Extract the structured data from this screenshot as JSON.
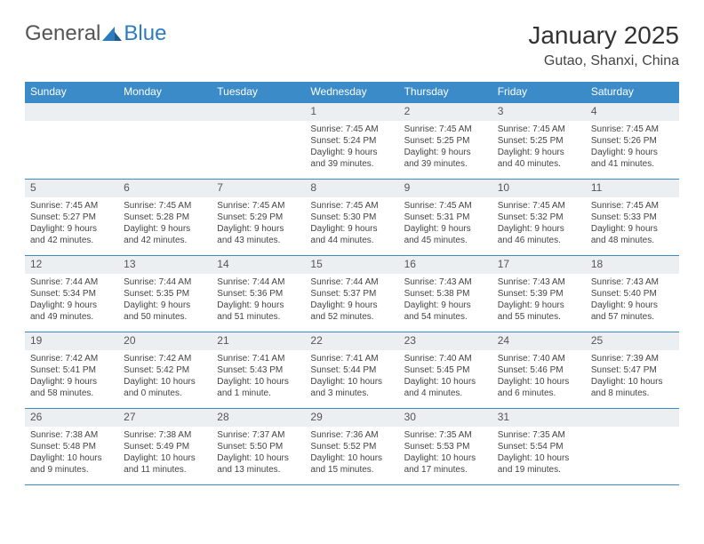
{
  "logo": {
    "text_general": "General",
    "text_blue": "Blue"
  },
  "header": {
    "month_title": "January 2025",
    "location": "Gutao, Shanxi, China"
  },
  "colors": {
    "header_bg": "#3b8bc9",
    "daynum_bg": "#eceff2",
    "border": "#3b8bc9",
    "text": "#333333",
    "logo_general": "#555555",
    "logo_blue": "#2d7cc0"
  },
  "fonts": {
    "title_size": 28,
    "location_size": 16,
    "dayheader_size": 12,
    "daynum_size": 12,
    "detail_size": 10
  },
  "day_headers": [
    "Sunday",
    "Monday",
    "Tuesday",
    "Wednesday",
    "Thursday",
    "Friday",
    "Saturday"
  ],
  "weeks": [
    [
      {
        "empty": true
      },
      {
        "empty": true
      },
      {
        "empty": true
      },
      {
        "num": "1",
        "sunrise": "Sunrise: 7:45 AM",
        "sunset": "Sunset: 5:24 PM",
        "daylight1": "Daylight: 9 hours",
        "daylight2": "and 39 minutes."
      },
      {
        "num": "2",
        "sunrise": "Sunrise: 7:45 AM",
        "sunset": "Sunset: 5:25 PM",
        "daylight1": "Daylight: 9 hours",
        "daylight2": "and 39 minutes."
      },
      {
        "num": "3",
        "sunrise": "Sunrise: 7:45 AM",
        "sunset": "Sunset: 5:25 PM",
        "daylight1": "Daylight: 9 hours",
        "daylight2": "and 40 minutes."
      },
      {
        "num": "4",
        "sunrise": "Sunrise: 7:45 AM",
        "sunset": "Sunset: 5:26 PM",
        "daylight1": "Daylight: 9 hours",
        "daylight2": "and 41 minutes."
      }
    ],
    [
      {
        "num": "5",
        "sunrise": "Sunrise: 7:45 AM",
        "sunset": "Sunset: 5:27 PM",
        "daylight1": "Daylight: 9 hours",
        "daylight2": "and 42 minutes."
      },
      {
        "num": "6",
        "sunrise": "Sunrise: 7:45 AM",
        "sunset": "Sunset: 5:28 PM",
        "daylight1": "Daylight: 9 hours",
        "daylight2": "and 42 minutes."
      },
      {
        "num": "7",
        "sunrise": "Sunrise: 7:45 AM",
        "sunset": "Sunset: 5:29 PM",
        "daylight1": "Daylight: 9 hours",
        "daylight2": "and 43 minutes."
      },
      {
        "num": "8",
        "sunrise": "Sunrise: 7:45 AM",
        "sunset": "Sunset: 5:30 PM",
        "daylight1": "Daylight: 9 hours",
        "daylight2": "and 44 minutes."
      },
      {
        "num": "9",
        "sunrise": "Sunrise: 7:45 AM",
        "sunset": "Sunset: 5:31 PM",
        "daylight1": "Daylight: 9 hours",
        "daylight2": "and 45 minutes."
      },
      {
        "num": "10",
        "sunrise": "Sunrise: 7:45 AM",
        "sunset": "Sunset: 5:32 PM",
        "daylight1": "Daylight: 9 hours",
        "daylight2": "and 46 minutes."
      },
      {
        "num": "11",
        "sunrise": "Sunrise: 7:45 AM",
        "sunset": "Sunset: 5:33 PM",
        "daylight1": "Daylight: 9 hours",
        "daylight2": "and 48 minutes."
      }
    ],
    [
      {
        "num": "12",
        "sunrise": "Sunrise: 7:44 AM",
        "sunset": "Sunset: 5:34 PM",
        "daylight1": "Daylight: 9 hours",
        "daylight2": "and 49 minutes."
      },
      {
        "num": "13",
        "sunrise": "Sunrise: 7:44 AM",
        "sunset": "Sunset: 5:35 PM",
        "daylight1": "Daylight: 9 hours",
        "daylight2": "and 50 minutes."
      },
      {
        "num": "14",
        "sunrise": "Sunrise: 7:44 AM",
        "sunset": "Sunset: 5:36 PM",
        "daylight1": "Daylight: 9 hours",
        "daylight2": "and 51 minutes."
      },
      {
        "num": "15",
        "sunrise": "Sunrise: 7:44 AM",
        "sunset": "Sunset: 5:37 PM",
        "daylight1": "Daylight: 9 hours",
        "daylight2": "and 52 minutes."
      },
      {
        "num": "16",
        "sunrise": "Sunrise: 7:43 AM",
        "sunset": "Sunset: 5:38 PM",
        "daylight1": "Daylight: 9 hours",
        "daylight2": "and 54 minutes."
      },
      {
        "num": "17",
        "sunrise": "Sunrise: 7:43 AM",
        "sunset": "Sunset: 5:39 PM",
        "daylight1": "Daylight: 9 hours",
        "daylight2": "and 55 minutes."
      },
      {
        "num": "18",
        "sunrise": "Sunrise: 7:43 AM",
        "sunset": "Sunset: 5:40 PM",
        "daylight1": "Daylight: 9 hours",
        "daylight2": "and 57 minutes."
      }
    ],
    [
      {
        "num": "19",
        "sunrise": "Sunrise: 7:42 AM",
        "sunset": "Sunset: 5:41 PM",
        "daylight1": "Daylight: 9 hours",
        "daylight2": "and 58 minutes."
      },
      {
        "num": "20",
        "sunrise": "Sunrise: 7:42 AM",
        "sunset": "Sunset: 5:42 PM",
        "daylight1": "Daylight: 10 hours",
        "daylight2": "and 0 minutes."
      },
      {
        "num": "21",
        "sunrise": "Sunrise: 7:41 AM",
        "sunset": "Sunset: 5:43 PM",
        "daylight1": "Daylight: 10 hours",
        "daylight2": "and 1 minute."
      },
      {
        "num": "22",
        "sunrise": "Sunrise: 7:41 AM",
        "sunset": "Sunset: 5:44 PM",
        "daylight1": "Daylight: 10 hours",
        "daylight2": "and 3 minutes."
      },
      {
        "num": "23",
        "sunrise": "Sunrise: 7:40 AM",
        "sunset": "Sunset: 5:45 PM",
        "daylight1": "Daylight: 10 hours",
        "daylight2": "and 4 minutes."
      },
      {
        "num": "24",
        "sunrise": "Sunrise: 7:40 AM",
        "sunset": "Sunset: 5:46 PM",
        "daylight1": "Daylight: 10 hours",
        "daylight2": "and 6 minutes."
      },
      {
        "num": "25",
        "sunrise": "Sunrise: 7:39 AM",
        "sunset": "Sunset: 5:47 PM",
        "daylight1": "Daylight: 10 hours",
        "daylight2": "and 8 minutes."
      }
    ],
    [
      {
        "num": "26",
        "sunrise": "Sunrise: 7:38 AM",
        "sunset": "Sunset: 5:48 PM",
        "daylight1": "Daylight: 10 hours",
        "daylight2": "and 9 minutes."
      },
      {
        "num": "27",
        "sunrise": "Sunrise: 7:38 AM",
        "sunset": "Sunset: 5:49 PM",
        "daylight1": "Daylight: 10 hours",
        "daylight2": "and 11 minutes."
      },
      {
        "num": "28",
        "sunrise": "Sunrise: 7:37 AM",
        "sunset": "Sunset: 5:50 PM",
        "daylight1": "Daylight: 10 hours",
        "daylight2": "and 13 minutes."
      },
      {
        "num": "29",
        "sunrise": "Sunrise: 7:36 AM",
        "sunset": "Sunset: 5:52 PM",
        "daylight1": "Daylight: 10 hours",
        "daylight2": "and 15 minutes."
      },
      {
        "num": "30",
        "sunrise": "Sunrise: 7:35 AM",
        "sunset": "Sunset: 5:53 PM",
        "daylight1": "Daylight: 10 hours",
        "daylight2": "and 17 minutes."
      },
      {
        "num": "31",
        "sunrise": "Sunrise: 7:35 AM",
        "sunset": "Sunset: 5:54 PM",
        "daylight1": "Daylight: 10 hours",
        "daylight2": "and 19 minutes."
      },
      {
        "empty": true
      }
    ]
  ]
}
